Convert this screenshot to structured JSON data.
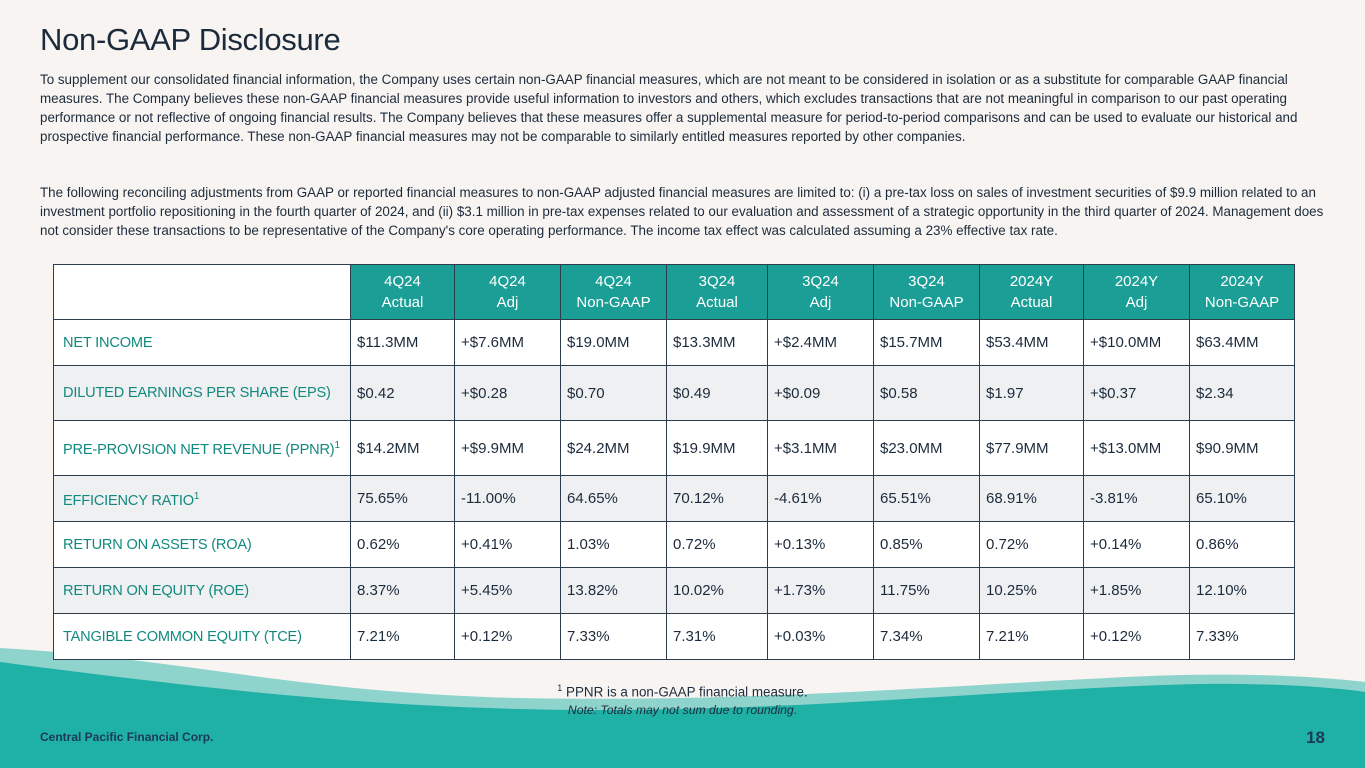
{
  "title": "Non-GAAP Disclosure",
  "paragraphs": [
    "To supplement our consolidated financial information, the Company uses certain non-GAAP financial measures, which are not meant to be considered in isolation or as a substitute for comparable GAAP financial measures. The Company believes these non-GAAP financial measures provide useful information to investors and others, which excludes transactions that are not meaningful in comparison to our past operating performance or not reflective of ongoing financial results. The Company believes that these measures offer a supplemental measure for period-to-period comparisons and can be used to evaluate our historical and prospective financial performance. These non-GAAP financial measures may not be comparable to similarly entitled measures reported by other companies.",
    "The following reconciling adjustments from GAAP or reported financial measures to non-GAAP adjusted financial measures are limited to: (i) a pre-tax loss on sales of investment securities of $9.9 million related to an investment portfolio repositioning in the fourth quarter of 2024, and (ii) $3.1 million in pre-tax expenses related to our evaluation and assessment of a strategic opportunity in the third quarter of 2024. Management does not consider these transactions to be representative of the Company's core operating performance. The income tax effect was calculated assuming a 23% effective tax rate."
  ],
  "table": {
    "columns": [
      {
        "period": "4Q24",
        "type": "Actual"
      },
      {
        "period": "4Q24",
        "type": "Adj"
      },
      {
        "period": "4Q24",
        "type": "Non-GAAP"
      },
      {
        "period": "3Q24",
        "type": "Actual"
      },
      {
        "period": "3Q24",
        "type": "Adj"
      },
      {
        "period": "3Q24",
        "type": "Non-GAAP"
      },
      {
        "period": "2024Y",
        "type": "Actual"
      },
      {
        "period": "2024Y",
        "type": "Adj"
      },
      {
        "period": "2024Y",
        "type": "Non-GAAP"
      }
    ],
    "rows": [
      {
        "label": "NET INCOME",
        "values": [
          "$11.3MM",
          "+$7.6MM",
          "$19.0MM",
          "$13.3MM",
          "+$2.4MM",
          "$15.7MM",
          "$53.4MM",
          "+$10.0MM",
          "$63.4MM"
        ]
      },
      {
        "label": "DILUTED EARNINGS PER SHARE (EPS)",
        "values": [
          "$0.42",
          "+$0.28",
          "$0.70",
          "$0.49",
          "+$0.09",
          "$0.58",
          "$1.97",
          "+$0.37",
          "$2.34"
        ]
      },
      {
        "label": "PRE-PROVISION NET REVENUE (PPNR)",
        "sup": "1",
        "values": [
          "$14.2MM",
          "+$9.9MM",
          "$24.2MM",
          "$19.9MM",
          "+$3.1MM",
          "$23.0MM",
          "$77.9MM",
          "+$13.0MM",
          "$90.9MM"
        ]
      },
      {
        "label": "EFFICIENCY RATIO",
        "sup": "1",
        "values": [
          "75.65%",
          "-11.00%",
          "64.65%",
          "70.12%",
          "-4.61%",
          "65.51%",
          "68.91%",
          "-3.81%",
          "65.10%"
        ]
      },
      {
        "label": "RETURN ON ASSETS (ROA)",
        "values": [
          "0.62%",
          "+0.41%",
          "1.03%",
          "0.72%",
          "+0.13%",
          "0.85%",
          "0.72%",
          "+0.14%",
          "0.86%"
        ]
      },
      {
        "label": "RETURN ON EQUITY (ROE)",
        "values": [
          "8.37%",
          "+5.45%",
          "13.82%",
          "10.02%",
          "+1.73%",
          "11.75%",
          "10.25%",
          "+1.85%",
          "12.10%"
        ]
      },
      {
        "label": "TANGIBLE COMMON EQUITY (TCE)",
        "values": [
          "7.21%",
          "+0.12%",
          "7.33%",
          "7.31%",
          "+0.03%",
          "7.34%",
          "7.21%",
          "+0.12%",
          "7.33%"
        ]
      }
    ]
  },
  "footnote": {
    "marker": "1",
    "text": "PPNR is a non-GAAP financial measure."
  },
  "note": "Note: Totals may not sum due to rounding.",
  "footer": {
    "company": "Central Pacific Financial Corp.",
    "page": "18"
  },
  "colors": {
    "header_teal": "#1a9e96",
    "label_teal": "#12897f",
    "navy": "#1c2b3c",
    "wave_light": "#8fd3cd",
    "wave_dark": "#1fb0a6"
  }
}
